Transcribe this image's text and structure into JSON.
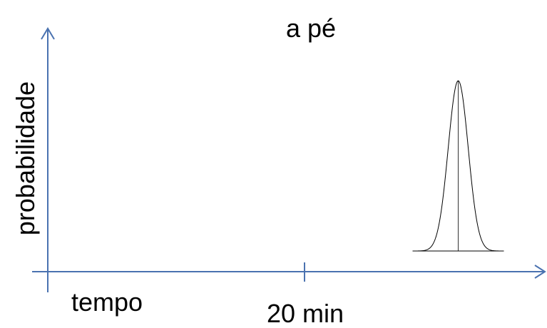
{
  "chart_data": {
    "type": "line",
    "title": "a pé",
    "xlabel": "tempo",
    "ylabel": "probabilidade",
    "x_tick_labels": [
      "20 min"
    ],
    "series": [
      {
        "distribution": "normal",
        "peak_x_fraction_of_axis": 0.83,
        "peak_height_fraction_of_axis": 0.92
      }
    ],
    "grid": false,
    "legend": "none"
  },
  "colors": {
    "axis": "#4a72b0",
    "curve": "#000000",
    "text": "#000000",
    "background": "#ffffff"
  }
}
